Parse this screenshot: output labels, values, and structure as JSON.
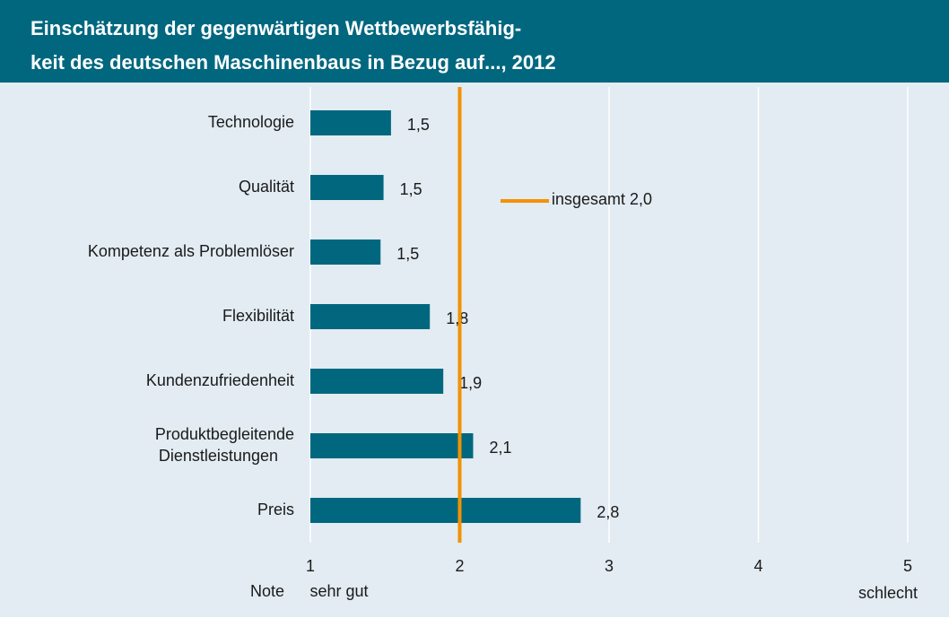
{
  "chart_data": {
    "type": "bar",
    "orientation": "horizontal",
    "title": [
      "Einschätzung der gegenwärtigen Wettbewerbsfähig-",
      "keit des deutschen Maschinenbaus in Bezug auf..., 2012"
    ],
    "categories": [
      "Technologie",
      "Qualität",
      "Kompetenz als Problemlöser",
      "Flexibilität",
      "Kundenzufriedenheit",
      "Produktbegleitende Dienstleistungen",
      "Preis"
    ],
    "values": [
      1.54,
      1.49,
      1.47,
      1.8,
      1.89,
      2.09,
      2.81
    ],
    "value_labels": [
      "1,5",
      "1,5",
      "1,5",
      "1,8",
      "1,9",
      "2,1",
      "2,8"
    ],
    "color": "#00677f",
    "xlim": [
      1,
      5
    ],
    "xticks": [
      1,
      2,
      3,
      4,
      5
    ],
    "grid": true,
    "reference_line": {
      "value": 2,
      "label": "insgesamt 2,0",
      "color": "#f39200"
    },
    "axis_notes": {
      "unit": "Note",
      "low": "sehr gut",
      "high": "schlecht"
    }
  }
}
